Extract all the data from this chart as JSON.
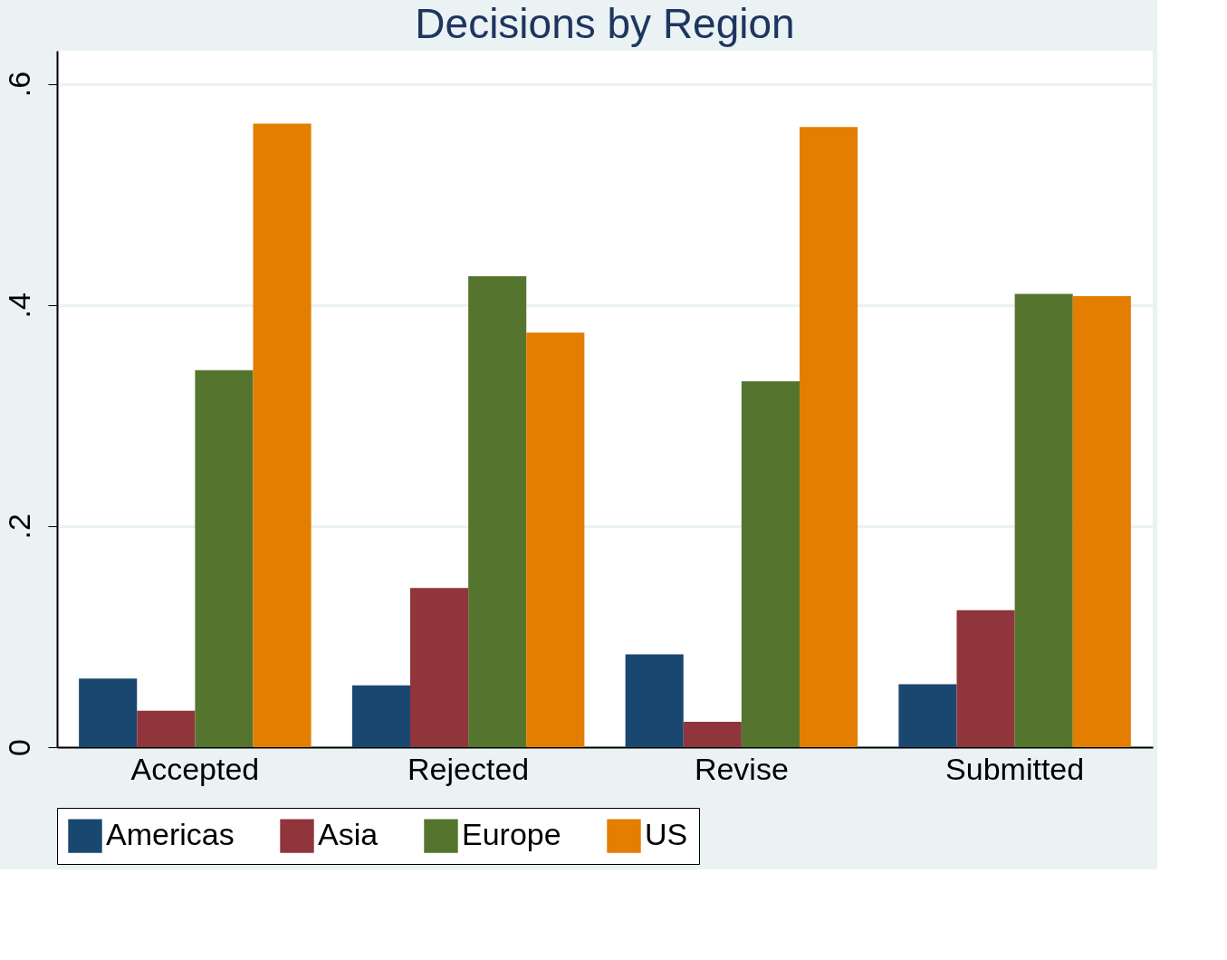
{
  "chart_data": {
    "type": "bar",
    "title": "Decisions by Region",
    "categories": [
      "Accepted",
      "Rejected",
      "Revise",
      "Submitted"
    ],
    "series": [
      {
        "name": "Americas",
        "color": "#1a476f",
        "values": [
          0.062,
          0.056,
          0.084,
          0.057
        ]
      },
      {
        "name": "Asia",
        "color": "#90353b",
        "values": [
          0.033,
          0.144,
          0.023,
          0.124
        ]
      },
      {
        "name": "Europe",
        "color": "#55752f",
        "values": [
          0.341,
          0.426,
          0.331,
          0.41
        ]
      },
      {
        "name": "US",
        "color": "#e37e00",
        "values": [
          0.564,
          0.375,
          0.561,
          0.408
        ]
      }
    ],
    "ylim": [
      0,
      0.63
    ],
    "yticks": [
      0,
      {
        "value": 0.2,
        "label": ".2"
      },
      {
        "value": 0.4,
        "label": ".4"
      },
      {
        "value": 0.6,
        "label": ".6"
      }
    ],
    "grid": "y",
    "legend": "bottom"
  }
}
